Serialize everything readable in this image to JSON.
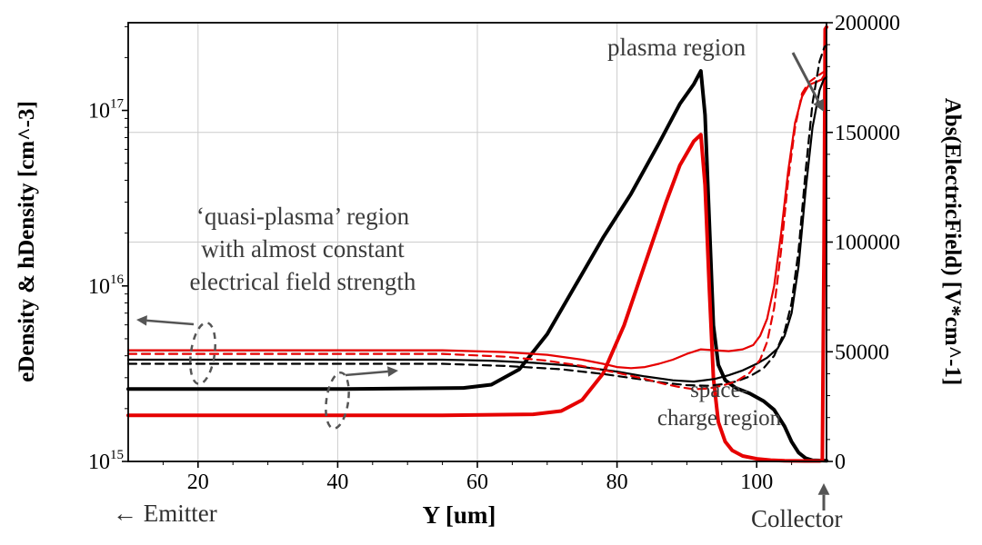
{
  "colors": {
    "black_series": "#000000",
    "red_series": "#e60000",
    "grid": "#cccccc",
    "frame": "#000000",
    "annotation_text": "#3c3c3c",
    "annotation_shapes": "#555555"
  },
  "footer": {
    "emitter_arrow": "←",
    "emitter": "Emitter",
    "collector": "Collector",
    "collector_arrow": "↑"
  },
  "annotations": {
    "plasma": "plasma region",
    "quasi_line1": "‘quasi-plasma’ region",
    "quasi_line2": "with almost constant",
    "quasi_line3": "electrical field strength",
    "space_line1": "space-",
    "space_line2": "charge region"
  },
  "chart_data": {
    "type": "line",
    "title": "",
    "xlabel": "Y [um]",
    "ylabel_left": "eDensity & hDensity [cm^-3]",
    "ylabel_right": "Abs(ElectricField) [V*cm^-1]",
    "xlim": [
      10,
      110
    ],
    "x_ticks": [
      20,
      40,
      60,
      80,
      100
    ],
    "left_axis": {
      "scale": "log",
      "unit": "cm^-3",
      "lim": [
        1000000000000000.0,
        3.16e+17
      ],
      "tick_exponents": [
        15,
        16,
        17
      ]
    },
    "right_axis": {
      "scale": "linear",
      "unit": "V*cm^-1",
      "lim": [
        0,
        200000
      ],
      "ticks": [
        0,
        50000,
        100000,
        150000,
        200000
      ]
    },
    "legend": "none",
    "grid": "on",
    "series": [
      {
        "name": "abs-electric-field-black",
        "axis": "right",
        "color": "#000000",
        "width": 4,
        "dash": null,
        "points": [
          [
            10,
            33000
          ],
          [
            40,
            33000
          ],
          [
            58,
            33500
          ],
          [
            62,
            35000
          ],
          [
            66,
            42000
          ],
          [
            70,
            58000
          ],
          [
            74,
            80000
          ],
          [
            78,
            102000
          ],
          [
            82,
            122000
          ],
          [
            86,
            145000
          ],
          [
            89,
            163000
          ],
          [
            91,
            172000
          ],
          [
            92,
            178000
          ],
          [
            92.6,
            158000
          ],
          [
            93.2,
            110000
          ],
          [
            93.8,
            62000
          ],
          [
            94.5,
            44000
          ],
          [
            95.5,
            37000
          ],
          [
            97,
            33500
          ],
          [
            99,
            31000
          ],
          [
            101,
            27500
          ],
          [
            102.5,
            23500
          ],
          [
            104,
            16000
          ],
          [
            105,
            9000
          ],
          [
            106,
            4000
          ],
          [
            107,
            1500
          ],
          [
            108,
            500
          ],
          [
            110,
            300
          ]
        ]
      },
      {
        "name": "abs-electric-field-red",
        "axis": "right",
        "color": "#e60000",
        "width": 4,
        "dash": null,
        "points": [
          [
            10,
            21000
          ],
          [
            55,
            21000
          ],
          [
            68,
            21500
          ],
          [
            72,
            23000
          ],
          [
            75,
            28000
          ],
          [
            78,
            40000
          ],
          [
            81,
            62000
          ],
          [
            84,
            90000
          ],
          [
            87,
            118000
          ],
          [
            89,
            135000
          ],
          [
            91,
            146000
          ],
          [
            92,
            149000
          ],
          [
            92.6,
            126000
          ],
          [
            93.2,
            80000
          ],
          [
            93.8,
            38000
          ],
          [
            94.5,
            18000
          ],
          [
            95.5,
            9000
          ],
          [
            96.5,
            5000
          ],
          [
            98,
            2500
          ],
          [
            100,
            1200
          ],
          [
            102,
            600
          ],
          [
            104,
            300
          ],
          [
            107,
            200
          ],
          [
            109,
            200
          ],
          [
            109.4,
            500
          ],
          [
            109.65,
            100000
          ],
          [
            109.8,
            197000
          ],
          [
            110,
            198000
          ]
        ]
      },
      {
        "name": "e-density-black",
        "axis": "left",
        "color": "#000000",
        "width": 2.2,
        "dash": null,
        "points": [
          [
            10,
            3800000000000000.0
          ],
          [
            55,
            3800000000000000.0
          ],
          [
            62,
            3750000000000000.0
          ],
          [
            68,
            3650000000000000.0
          ],
          [
            74,
            3500000000000000.0
          ],
          [
            80,
            3250000000000000.0
          ],
          [
            84,
            3050000000000000.0
          ],
          [
            88,
            2900000000000000.0
          ],
          [
            91,
            2850000000000000.0
          ],
          [
            94,
            2950000000000000.0
          ],
          [
            96,
            3100000000000000.0
          ],
          [
            98,
            3300000000000000.0
          ],
          [
            100,
            3600000000000000.0
          ],
          [
            101.5,
            3900000000000000.0
          ],
          [
            103,
            4400000000000000.0
          ],
          [
            104,
            5200000000000000.0
          ],
          [
            105,
            7000000000000000.0
          ],
          [
            106,
            1.3e+16
          ],
          [
            107,
            3.5e+16
          ],
          [
            108,
            8e+16
          ],
          [
            109,
            1.3e+17
          ],
          [
            109.6,
            1.5e+17
          ],
          [
            110,
            1.55e+17
          ]
        ]
      },
      {
        "name": "h-density-red",
        "axis": "left",
        "color": "#e60000",
        "width": 2.2,
        "dash": null,
        "points": [
          [
            10,
            4300000000000000.0
          ],
          [
            55,
            4300000000000000.0
          ],
          [
            64,
            4200000000000000.0
          ],
          [
            70,
            4050000000000000.0
          ],
          [
            75,
            3800000000000000.0
          ],
          [
            78,
            3600000000000000.0
          ],
          [
            80,
            3450000000000000.0
          ],
          [
            82,
            3400000000000000.0
          ],
          [
            84,
            3450000000000000.0
          ],
          [
            86,
            3600000000000000.0
          ],
          [
            88,
            3800000000000000.0
          ],
          [
            90,
            4100000000000000.0
          ],
          [
            92,
            4350000000000000.0
          ],
          [
            94,
            4300000000000000.0
          ],
          [
            96,
            4250000000000000.0
          ],
          [
            98,
            4350000000000000.0
          ],
          [
            99.5,
            4600000000000000.0
          ],
          [
            100.5,
            5200000000000000.0
          ],
          [
            101.5,
            6500000000000000.0
          ],
          [
            102.5,
            1e+16
          ],
          [
            103.5,
            2e+16
          ],
          [
            104.5,
            4.5e+16
          ],
          [
            105.5,
            8.5e+16
          ],
          [
            106.5,
            1.2e+17
          ],
          [
            107.5,
            1.4e+17
          ],
          [
            108.5,
            1.45e+17
          ],
          [
            109.3,
            1.5e+17
          ],
          [
            110,
            1.68e+17
          ]
        ]
      },
      {
        "name": "density-black-dashed",
        "axis": "left",
        "color": "#000000",
        "width": 2.2,
        "dash": "9 6",
        "points": [
          [
            10,
            3600000000000000.0
          ],
          [
            55,
            3600000000000000.0
          ],
          [
            64,
            3500000000000000.0
          ],
          [
            72,
            3350000000000000.0
          ],
          [
            78,
            3150000000000000.0
          ],
          [
            83,
            2950000000000000.0
          ],
          [
            87,
            2800000000000000.0
          ],
          [
            90,
            2720000000000000.0
          ],
          [
            93,
            2700000000000000.0
          ],
          [
            95,
            2750000000000000.0
          ],
          [
            97,
            2850000000000000.0
          ],
          [
            99,
            3050000000000000.0
          ],
          [
            101,
            3400000000000000.0
          ],
          [
            102.5,
            4000000000000000.0
          ],
          [
            104,
            5500000000000000.0
          ],
          [
            105,
            8000000000000000.0
          ],
          [
            106,
            1.6e+16
          ],
          [
            107,
            4.5e+16
          ],
          [
            108,
            1.1e+17
          ],
          [
            109,
            1.9e+17
          ],
          [
            109.7,
            2.3e+17
          ],
          [
            110,
            2.35e+17
          ]
        ]
      },
      {
        "name": "density-red-dashed",
        "axis": "left",
        "color": "#e60000",
        "width": 2.2,
        "dash": "9 6",
        "points": [
          [
            10,
            4100000000000000.0
          ],
          [
            55,
            4100000000000000.0
          ],
          [
            64,
            3950000000000000.0
          ],
          [
            70,
            3750000000000000.0
          ],
          [
            75,
            3500000000000000.0
          ],
          [
            80,
            3200000000000000.0
          ],
          [
            84,
            2950000000000000.0
          ],
          [
            87,
            2750000000000000.0
          ],
          [
            89,
            2650000000000000.0
          ],
          [
            91,
            2580000000000000.0
          ],
          [
            93,
            2600000000000000.0
          ],
          [
            95,
            2700000000000000.0
          ],
          [
            97,
            2850000000000000.0
          ],
          [
            99,
            3200000000000000.0
          ],
          [
            100.5,
            3800000000000000.0
          ],
          [
            101.5,
            4800000000000000.0
          ],
          [
            102.5,
            7500000000000000.0
          ],
          [
            103.5,
            1.6e+16
          ],
          [
            104.5,
            4e+16
          ],
          [
            105.5,
            8e+16
          ],
          [
            106.5,
            1.25e+17
          ],
          [
            107.5,
            1.45e+17
          ],
          [
            108.5,
            1.55e+17
          ],
          [
            110,
            1.7e+17
          ]
        ]
      }
    ]
  }
}
